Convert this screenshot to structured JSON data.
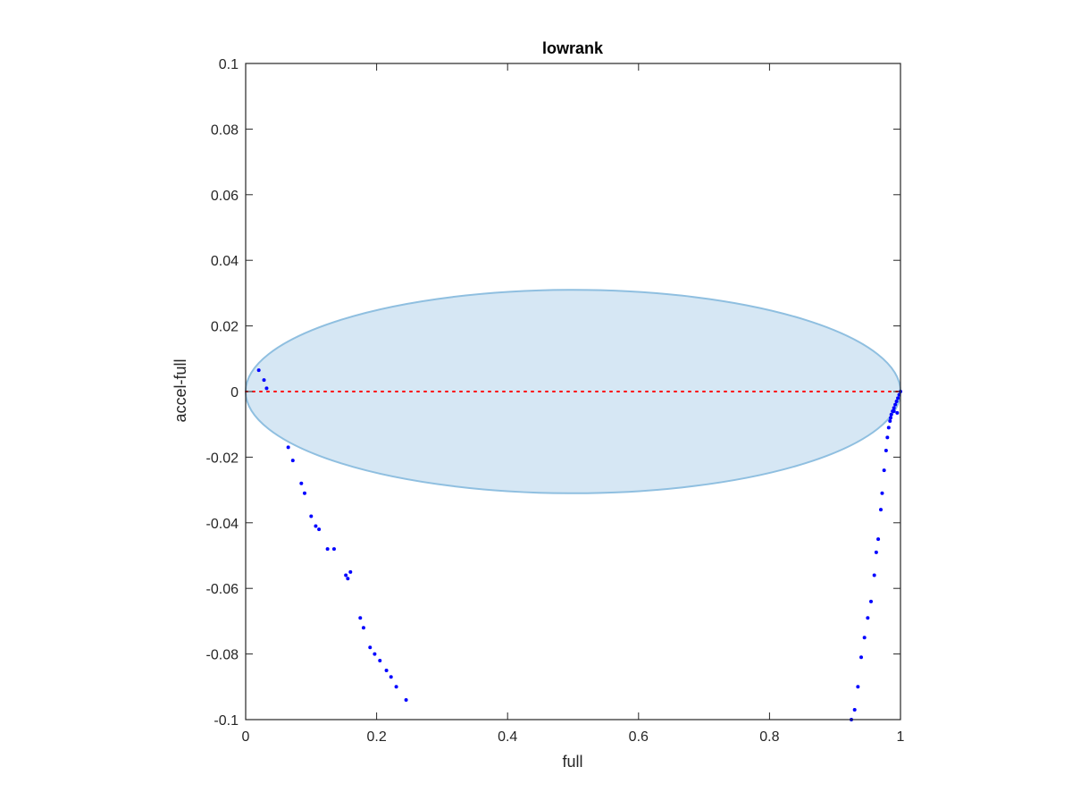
{
  "chart_data": {
    "type": "scatter",
    "title": "lowrank",
    "xlabel": "full",
    "ylabel": "accel-full",
    "xlim": [
      0,
      1
    ],
    "ylim": [
      -0.1,
      0.1
    ],
    "xticks": [
      0,
      0.2,
      0.4,
      0.6,
      0.8,
      1
    ],
    "xtick_labels": [
      "0",
      "0.2",
      "0.4",
      "0.6",
      "0.8",
      "1"
    ],
    "yticks": [
      -0.1,
      -0.08,
      -0.06,
      -0.04,
      -0.02,
      0,
      0.02,
      0.04,
      0.06,
      0.08,
      0.1
    ],
    "ytick_labels": [
      "-0.1",
      "-0.08",
      "-0.06",
      "-0.04",
      "-0.02",
      "0",
      "0.02",
      "0.04",
      "0.06",
      "0.08",
      "0.1"
    ],
    "grid": false,
    "box": true,
    "colors": {
      "points": "#0000ff",
      "zero_line": "#ff0000",
      "ellipse_fill": "#d6e7f4",
      "ellipse_edge": "#8fbfe0",
      "axes": "#262626"
    },
    "ellipse": {
      "cx": 0.5,
      "cy": 0,
      "rx": 0.5,
      "ry": 0.031
    },
    "reference_line": {
      "y": 0,
      "x": [
        0,
        1
      ],
      "style": "dotted"
    },
    "series": [
      {
        "marker": "dot",
        "x": [
          0.02,
          0.028,
          0.032,
          0.065,
          0.072,
          0.085,
          0.09,
          0.1,
          0.107,
          0.112,
          0.125,
          0.135,
          0.153,
          0.156,
          0.16,
          0.175,
          0.18,
          0.19,
          0.197,
          0.205,
          0.215,
          0.222,
          0.23,
          0.245
        ],
        "y": [
          0.0065,
          0.0035,
          0.001,
          -0.017,
          -0.021,
          -0.028,
          -0.031,
          -0.038,
          -0.041,
          -0.042,
          -0.048,
          -0.048,
          -0.056,
          -0.057,
          -0.055,
          -0.069,
          -0.072,
          -0.078,
          -0.08,
          -0.082,
          -0.085,
          -0.087,
          -0.09,
          -0.094
        ]
      },
      {
        "marker": "dot",
        "x": [
          0.925,
          0.93,
          0.935,
          0.94,
          0.945,
          0.95,
          0.955,
          0.96,
          0.963,
          0.966,
          0.97,
          0.972,
          0.975,
          0.978,
          0.98,
          0.982,
          0.984,
          0.986,
          0.988,
          0.99,
          0.992,
          0.994,
          0.996,
          0.998,
          1.0,
          0.985,
          0.99,
          0.995
        ],
        "y": [
          -0.1,
          -0.097,
          -0.09,
          -0.081,
          -0.075,
          -0.069,
          -0.064,
          -0.056,
          -0.049,
          -0.045,
          -0.036,
          -0.031,
          -0.024,
          -0.018,
          -0.014,
          -0.011,
          -0.009,
          -0.007,
          -0.006,
          -0.005,
          -0.004,
          -0.003,
          -0.002,
          -0.001,
          0.0,
          -0.008,
          -0.006,
          -0.0065
        ]
      }
    ]
  }
}
